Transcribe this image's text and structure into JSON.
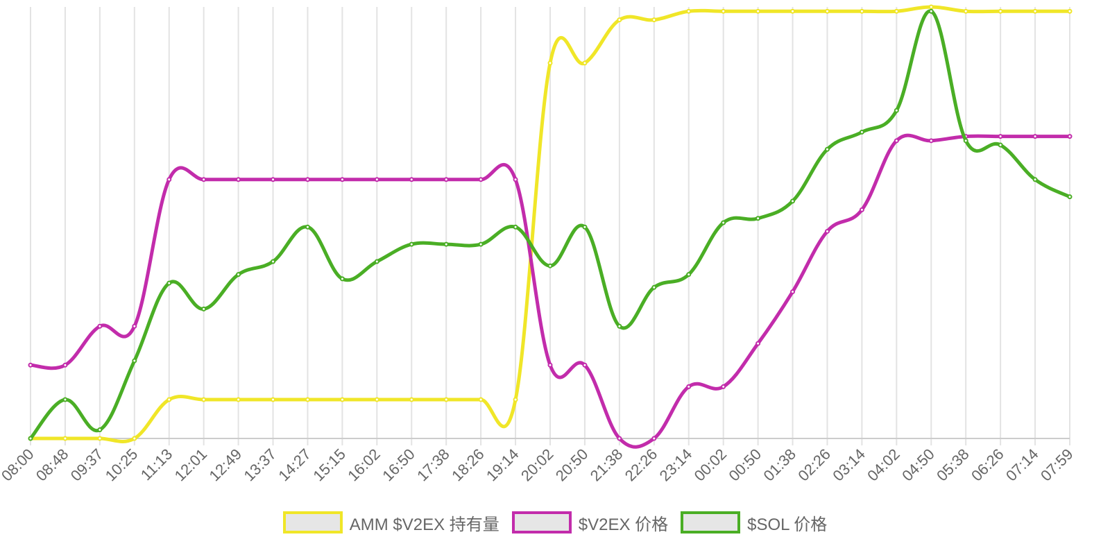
{
  "chart_data": {
    "type": "line",
    "x": [
      "08:00",
      "08:48",
      "09:37",
      "10:25",
      "11:13",
      "12:01",
      "12:49",
      "13:37",
      "14:27",
      "15:15",
      "16:02",
      "16:50",
      "17:38",
      "18:26",
      "19:14",
      "20:02",
      "20:50",
      "21:38",
      "22:26",
      "23:14",
      "00:02",
      "00:50",
      "01:38",
      "02:26",
      "03:14",
      "04:02",
      "04:50",
      "05:38",
      "06:26",
      "07:14",
      "07:59"
    ],
    "ylim": [
      0,
      100
    ],
    "grid": {
      "vertical": true,
      "horizontal": false
    },
    "legend_position": "bottom",
    "series": [
      {
        "name": "AMM $V2EX 持有量",
        "color": "#f0e628",
        "values": [
          0,
          0,
          0,
          0,
          9,
          9,
          9,
          9,
          9,
          9,
          9,
          9,
          9,
          9,
          9,
          87,
          87,
          97,
          97,
          99,
          99,
          99,
          99,
          99,
          99,
          99,
          100,
          99,
          99,
          99,
          99
        ]
      },
      {
        "name": "$V2EX 价格",
        "color": "#c22cab",
        "values": [
          17,
          17,
          26,
          26,
          60,
          60,
          60,
          60,
          60,
          60,
          60,
          60,
          60,
          60,
          60,
          17,
          17,
          0,
          0,
          12,
          12,
          22,
          34,
          48,
          53,
          69,
          69,
          70,
          70,
          70,
          70
        ]
      },
      {
        "name": "$SOL 价格",
        "color": "#4aae25",
        "values": [
          0,
          9,
          2,
          18,
          36,
          30,
          38,
          41,
          49,
          37,
          41,
          45,
          45,
          45,
          49,
          40,
          49,
          26,
          35,
          38,
          50,
          51,
          55,
          67,
          71,
          76,
          99,
          69,
          68,
          60,
          56
        ]
      }
    ]
  }
}
